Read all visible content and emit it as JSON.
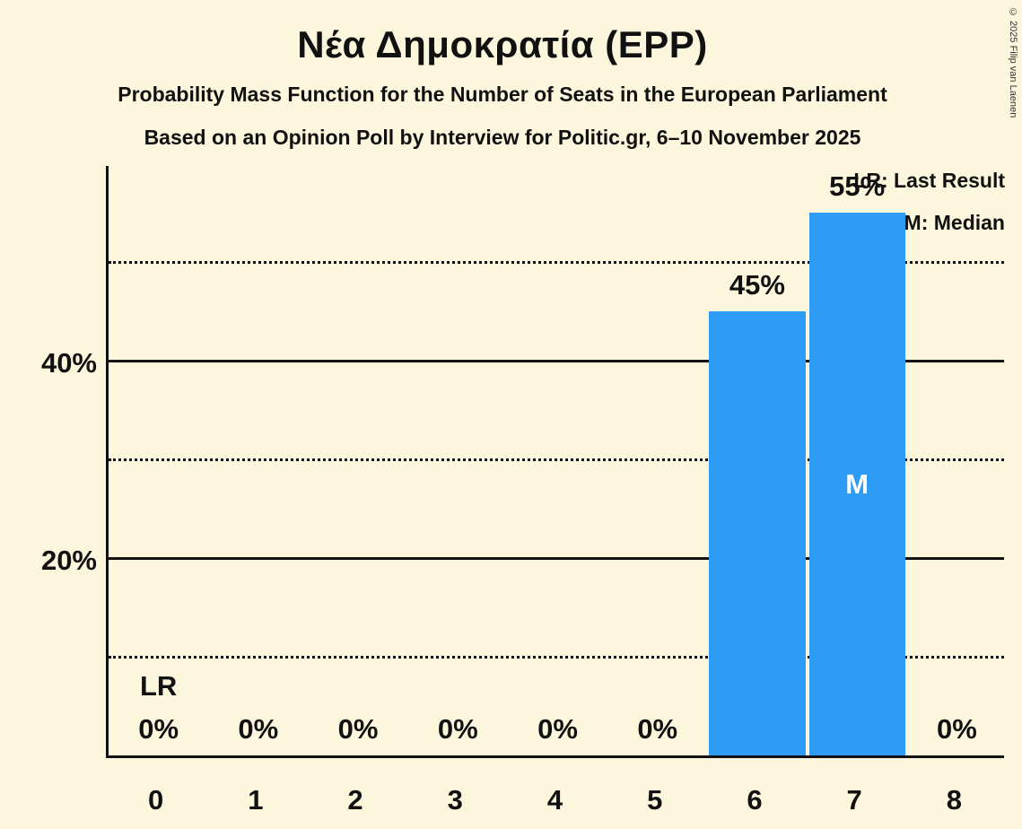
{
  "title": "Νέα Δημοκρατία (EPP)",
  "subtitle1": "Probability Mass Function for the Number of Seats in the European Parliament",
  "subtitle2": "Based on an Opinion Poll by Interview for Politic.gr, 6–10 November 2025",
  "copyright": "© 2025 Filip van Laenen",
  "legend": {
    "last_result": "LR: Last Result",
    "median": "M: Median"
  },
  "colors": {
    "background": "#FCF7DC",
    "bar": "#2E9BF5",
    "text": "#111111",
    "inside_bar_text": "#FFFFFF"
  },
  "chart_data": {
    "type": "bar",
    "title": "Νέα Δημοκρατία (EPP)",
    "xlabel": "Number of Seats in the European Parliament",
    "ylabel": "Probability",
    "categories": [
      "0",
      "1",
      "2",
      "3",
      "4",
      "5",
      "6",
      "7",
      "8"
    ],
    "values": [
      0,
      0,
      0,
      0,
      0,
      0,
      45,
      55,
      0
    ],
    "labels": [
      "0%",
      "0%",
      "0%",
      "0%",
      "0%",
      "0%",
      "45%",
      "55%",
      "0%"
    ],
    "ylim": [
      0,
      60
    ],
    "grid": "horizontal-only",
    "solid_gridlines": [
      20,
      40
    ],
    "dotted_gridlines": [
      10,
      30,
      50
    ],
    "ytick_values": [
      20,
      40
    ],
    "ytick_labels": [
      "20%",
      "40%"
    ],
    "median_index": 7,
    "median_marker": "M",
    "last_result_index": 0,
    "last_result_marker": "LR",
    "legend_position": "top-right"
  }
}
